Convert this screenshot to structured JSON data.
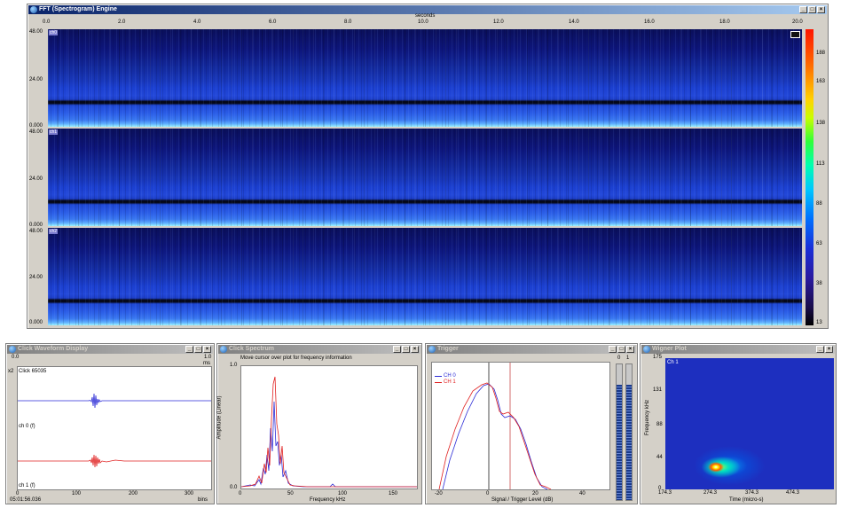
{
  "spectrogram": {
    "title": "FFT (Spectrogram) Engine",
    "x_axis_label": "seconds",
    "x_ticks": [
      "0.0",
      "2.0",
      "4.0",
      "6.0",
      "8.0",
      "10.0",
      "12.0",
      "14.0",
      "16.0",
      "18.0",
      "20.0"
    ],
    "channels": [
      {
        "tag": "ch0",
        "y_ticks": [
          "48.00",
          "24.00",
          "0.000"
        ]
      },
      {
        "tag": "ch1",
        "y_ticks": [
          "48.00",
          "24.00",
          "0.000"
        ]
      },
      {
        "tag": "ch2",
        "y_ticks": [
          "48.00",
          "24.00",
          "0.000"
        ]
      }
    ],
    "colorbar_ticks": [
      "188",
      "163",
      "138",
      "113",
      "88",
      "63",
      "38",
      "13"
    ]
  },
  "waveform": {
    "title": "Click Waveform Display",
    "x_top_ticks": [
      "0.0",
      "1.0"
    ],
    "x_top_unit": "ms",
    "y_exp": "x2",
    "click_label": "Click 65035",
    "ch0_label": "ch 0 (f)",
    "ch1_label": "ch 1 (f)",
    "x_ticks": [
      "0",
      "100",
      "200",
      "300"
    ],
    "x_unit": "bins",
    "timestamp": "05:01:56.036"
  },
  "spectrum": {
    "title": "Click Spectrum",
    "info": "Move cursor over plot for frequency information",
    "y_label": "Amplitude (Linear)",
    "y_ticks": [
      "1.0",
      "0.0"
    ],
    "x_ticks": [
      "0",
      "50",
      "100",
      "150"
    ],
    "x_label": "Frequency kHz"
  },
  "trigger": {
    "title": "Trigger",
    "legend": [
      "CH 0",
      "CH 1"
    ],
    "x_ticks": [
      "-20",
      "0",
      "20",
      "40"
    ],
    "x_label": "Signal / Trigger Level (dB)",
    "meter_labels": [
      "0",
      "1"
    ],
    "meter_levels": [
      0.85,
      0.85
    ]
  },
  "wigner": {
    "title": "Wigner Plot",
    "tag": "Ch 1",
    "y_label": "Frequency kHz",
    "y_ticks": [
      "175",
      "131",
      "88",
      "44",
      "0"
    ],
    "x_ticks": [
      "174.3",
      "274.3",
      "374.3",
      "474.3"
    ],
    "x_label": "Time (micro-s)"
  },
  "colors": {
    "ch0": "#2b2bd6",
    "ch1": "#e02020",
    "title_active": "#0a246a",
    "title_inactive": "#808080"
  }
}
